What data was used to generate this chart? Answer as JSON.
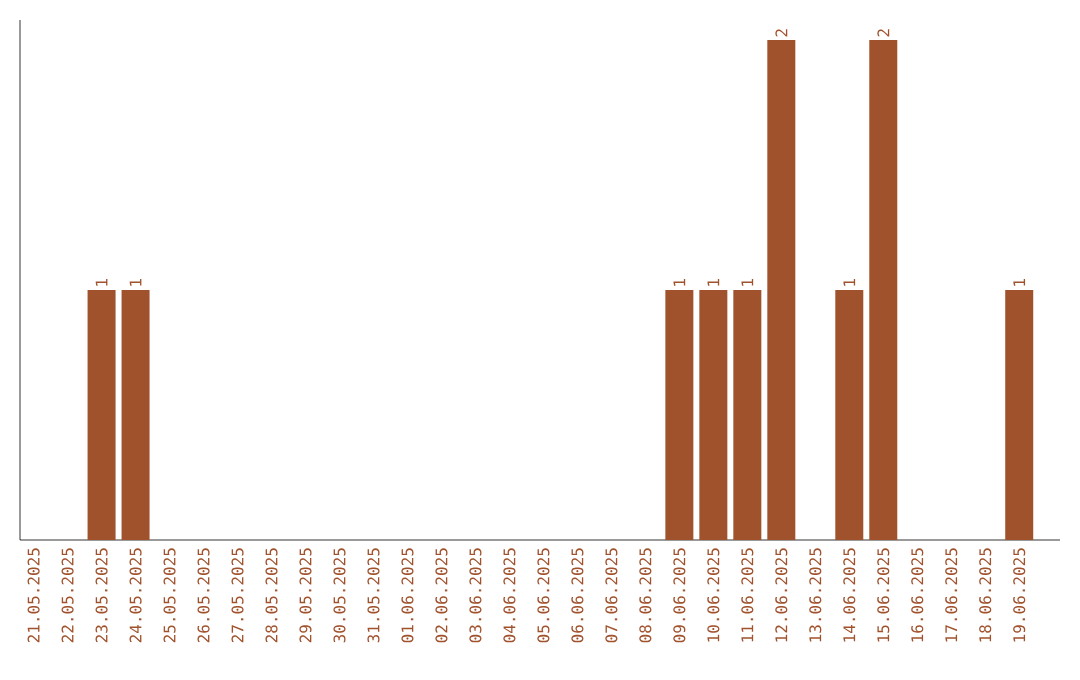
{
  "chart_data": {
    "type": "bar",
    "categories": [
      "21.05.2025",
      "22.05.2025",
      "23.05.2025",
      "24.05.2025",
      "25.05.2025",
      "26.05.2025",
      "27.05.2025",
      "28.05.2025",
      "29.05.2025",
      "30.05.2025",
      "31.05.2025",
      "01.06.2025",
      "02.06.2025",
      "03.06.2025",
      "04.06.2025",
      "05.06.2025",
      "06.06.2025",
      "07.06.2025",
      "08.06.2025",
      "09.06.2025",
      "10.06.2025",
      "11.06.2025",
      "12.06.2025",
      "13.06.2025",
      "14.06.2025",
      "15.06.2025",
      "16.06.2025",
      "17.06.2025",
      "18.06.2025",
      "19.06.2025"
    ],
    "values": [
      0,
      0,
      1,
      1,
      0,
      0,
      0,
      0,
      0,
      0,
      0,
      0,
      0,
      0,
      0,
      0,
      0,
      0,
      0,
      1,
      1,
      1,
      2,
      0,
      1,
      2,
      0,
      0,
      0,
      1
    ],
    "value_labels": [
      null,
      null,
      "1",
      "1",
      null,
      null,
      null,
      null,
      null,
      null,
      null,
      null,
      null,
      null,
      null,
      null,
      null,
      null,
      null,
      "1",
      "1",
      "1",
      "2",
      null,
      "1",
      "2",
      null,
      null,
      null,
      "1"
    ],
    "color": "#a0522d",
    "ylim": [
      0,
      2.08
    ],
    "tick_labels": "x"
  }
}
